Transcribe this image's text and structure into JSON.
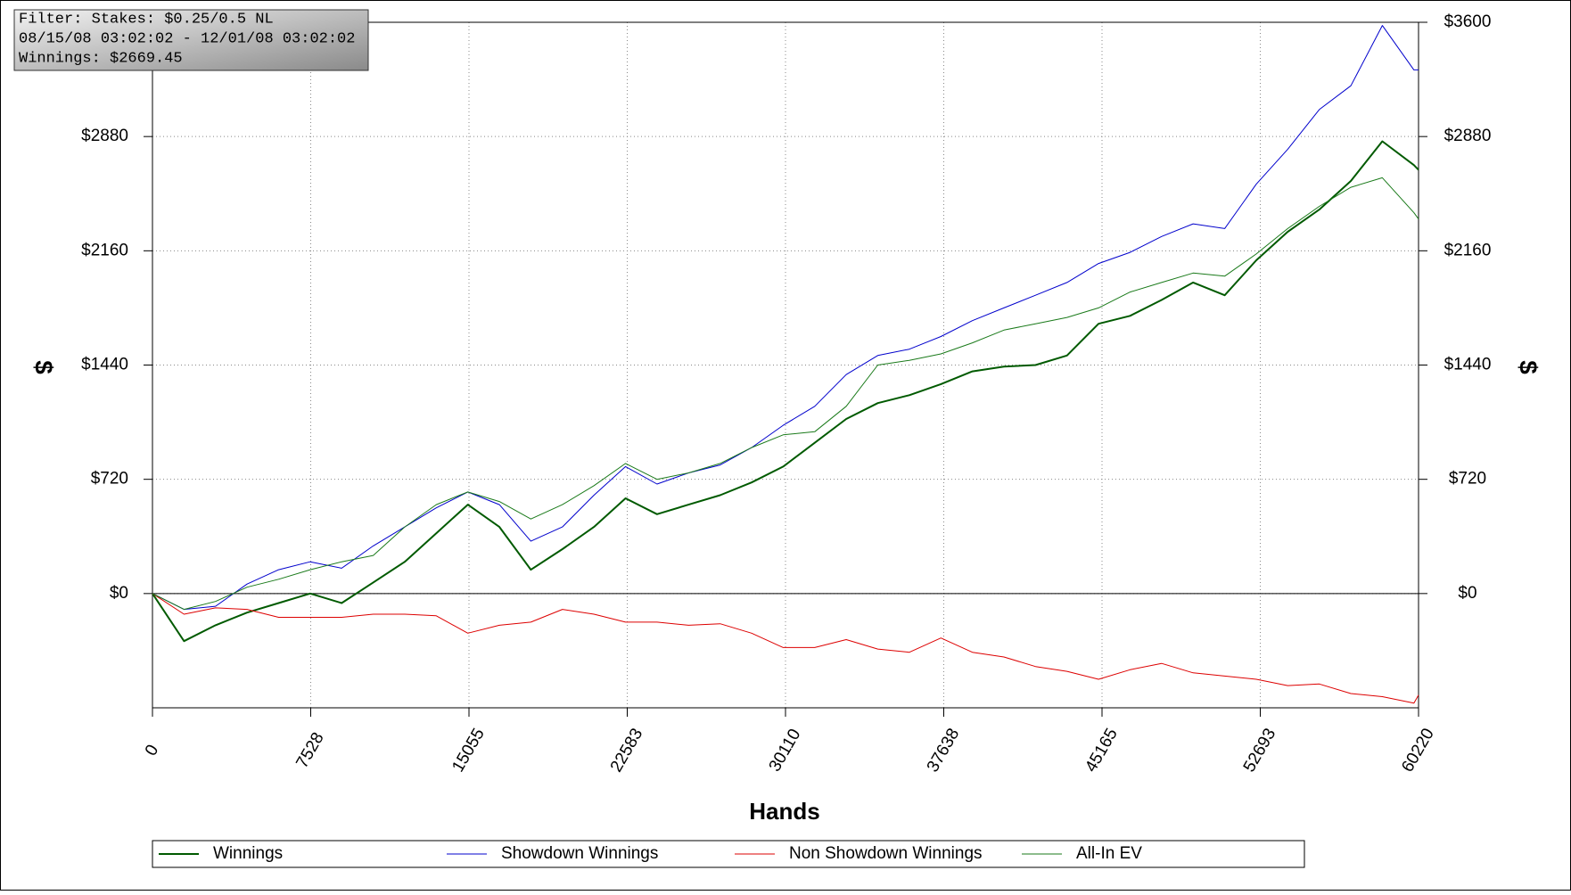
{
  "chart_data": {
    "type": "line",
    "x_label": "Hands",
    "y_label": "$",
    "y2_label": "$",
    "annotations": [
      "Filter: Stakes: $0.25/0.5 NL",
      "08/15/08 03:02:02 - 12/01/08 03:02:02",
      "Winnings: $2669.45"
    ],
    "x": [
      0,
      1500,
      3000,
      4500,
      6000,
      7500,
      9000,
      10500,
      12000,
      13500,
      15000,
      16500,
      18000,
      19500,
      21000,
      22500,
      24000,
      25500,
      27000,
      28500,
      30000,
      31500,
      33000,
      34500,
      36000,
      37500,
      39000,
      40500,
      42000,
      43500,
      45000,
      46500,
      48000,
      49500,
      51000,
      52500,
      54000,
      55500,
      57000,
      58500,
      60000,
      60220
    ],
    "xlim": [
      0,
      60220
    ],
    "xticks": [
      0,
      7528,
      15055,
      22583,
      30110,
      37638,
      45165,
      52693,
      60220
    ],
    "ylim": [
      -720,
      3600
    ],
    "yticks": [
      {
        "value": 0,
        "label": "$0"
      },
      {
        "value": 720,
        "label": "$720"
      },
      {
        "value": 1440,
        "label": "$1440"
      },
      {
        "value": 2160,
        "label": "$2160"
      },
      {
        "value": 2880,
        "label": "$2880"
      },
      {
        "value": 3600,
        "label": "$3600"
      }
    ],
    "y2lim": [
      -720,
      3600
    ],
    "y2ticks": [
      {
        "value": 0,
        "label": "$0"
      },
      {
        "value": 720,
        "label": "$720"
      },
      {
        "value": 1440,
        "label": "$1440"
      },
      {
        "value": 2160,
        "label": "$2160"
      },
      {
        "value": 2880,
        "label": "$2880"
      },
      {
        "value": 3600,
        "label": "$3600"
      }
    ],
    "grid": true,
    "series": [
      {
        "name": "Winnings",
        "color": "#005a00",
        "line_width": 2,
        "values": [
          0,
          -300,
          -200,
          -120,
          -60,
          0,
          -60,
          70,
          200,
          380,
          560,
          420,
          150,
          280,
          420,
          600,
          500,
          560,
          620,
          700,
          800,
          950,
          1100,
          1200,
          1250,
          1320,
          1400,
          1430,
          1440,
          1500,
          1700,
          1750,
          1850,
          1960,
          1880,
          2100,
          2280,
          2420,
          2600,
          2850,
          2700,
          2669.45
        ]
      },
      {
        "name": "Showdown Winnings",
        "color": "#0000cc",
        "line_width": 1,
        "values": [
          0,
          -100,
          -80,
          60,
          150,
          200,
          160,
          300,
          420,
          540,
          640,
          560,
          330,
          420,
          620,
          800,
          690,
          760,
          810,
          920,
          1060,
          1180,
          1380,
          1500,
          1540,
          1620,
          1720,
          1800,
          1880,
          1960,
          2080,
          2150,
          2250,
          2330,
          2300,
          2580,
          2800,
          3050,
          3200,
          3580,
          3300,
          3300
        ]
      },
      {
        "name": "Non Showdown Winnings",
        "color": "#dd0000",
        "line_width": 1,
        "values": [
          0,
          -130,
          -90,
          -100,
          -150,
          -150,
          -150,
          -130,
          -130,
          -140,
          -250,
          -200,
          -180,
          -100,
          -130,
          -180,
          -180,
          -200,
          -190,
          -250,
          -340,
          -340,
          -290,
          -350,
          -370,
          -280,
          -370,
          -400,
          -460,
          -490,
          -540,
          -480,
          -440,
          -500,
          -520,
          -540,
          -580,
          -570,
          -630,
          -650,
          -690,
          -640
        ]
      },
      {
        "name": "All-In EV",
        "color": "#1a7a1a",
        "line_width": 1,
        "values": [
          0,
          -100,
          -50,
          40,
          90,
          150,
          200,
          240,
          420,
          560,
          640,
          580,
          470,
          560,
          680,
          820,
          720,
          760,
          820,
          920,
          1000,
          1020,
          1180,
          1440,
          1470,
          1510,
          1580,
          1660,
          1700,
          1740,
          1800,
          1900,
          1960,
          2020,
          2000,
          2140,
          2300,
          2440,
          2560,
          2620,
          2400,
          2360
        ]
      }
    ]
  }
}
